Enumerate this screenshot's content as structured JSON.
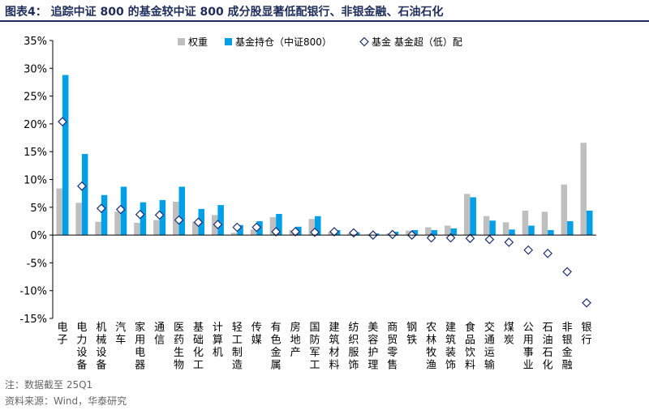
{
  "title": "图表4： 追踪中证 800 的基金较中证 800 成分股显著低配银行、非银金融、石油石化",
  "note": "注：数据截至 25Q1",
  "source": "资料来源：Wind，华泰研究",
  "colors": {
    "weight": "#bfbfbf",
    "holding": "#00a0e9",
    "diff": "#1f2d6e",
    "title": "#1f2d5a"
  },
  "chart_data": {
    "type": "bar",
    "categories": [
      "电子",
      "电力设备",
      "机械设备",
      "汽车",
      "家用电器",
      "通信",
      "医药生物",
      "基础化工",
      "计算机",
      "轻工制造",
      "传媒",
      "有色金属",
      "房地产",
      "国防军工",
      "建筑材料",
      "纺织服饰",
      "美容护理",
      "商贸零售",
      "钢铁",
      "农林牧渔",
      "建筑装饰",
      "食品饮料",
      "交通运输",
      "煤炭",
      "公用事业",
      "石油石化",
      "非银金融",
      "银行"
    ],
    "series": [
      {
        "name": "权重",
        "type": "bar",
        "values": [
          8.4,
          5.8,
          2.4,
          4.2,
          2.2,
          2.7,
          6.0,
          2.4,
          3.6,
          0.4,
          1.0,
          3.2,
          0.9,
          2.9,
          0.6,
          0.3,
          0.2,
          0.3,
          0.8,
          1.4,
          1.7,
          7.4,
          3.4,
          2.3,
          4.4,
          4.2,
          9.1,
          16.6
        ]
      },
      {
        "name": "基金持仓（中证800）",
        "type": "bar",
        "values": [
          28.8,
          14.6,
          7.2,
          8.7,
          5.9,
          6.3,
          8.7,
          4.7,
          5.4,
          1.8,
          2.5,
          3.8,
          1.5,
          3.4,
          0.9,
          0.5,
          0.3,
          0.6,
          0.9,
          0.9,
          1.2,
          6.8,
          2.6,
          1.0,
          1.7,
          0.9,
          2.5,
          4.4
        ]
      },
      {
        "name": "基金 基金超（低）配",
        "type": "scatter",
        "marker": "diamond",
        "values": [
          20.4,
          8.8,
          4.8,
          4.6,
          3.7,
          3.6,
          2.7,
          2.3,
          1.9,
          1.4,
          1.4,
          0.6,
          0.6,
          0.5,
          0.6,
          0.4,
          0.0,
          0.1,
          0.0,
          -0.5,
          -0.5,
          -0.6,
          -0.8,
          -1.3,
          -2.7,
          -3.3,
          -6.6,
          -12.2
        ]
      }
    ],
    "y_ticks": [
      "35%",
      "30%",
      "25%",
      "20%",
      "15%",
      "10%",
      "5%",
      "0%",
      "-5%",
      "-10%",
      "-15%"
    ],
    "ylim": [
      -15,
      35
    ],
    "y_format": "percent",
    "grid": false,
    "legend_position": "top-right"
  }
}
